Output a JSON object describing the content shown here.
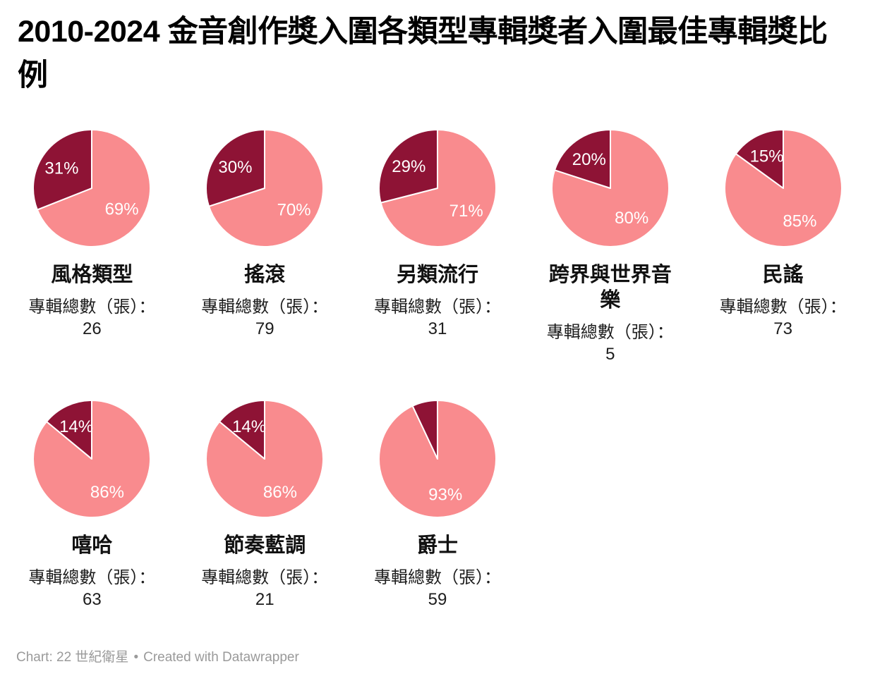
{
  "title": {
    "line1": "2010-2024 金音創作獎入圍各類型專輯獎者入圍最佳專輯獎比",
    "line2": "例"
  },
  "album_total_label": "專輯總數（張）：",
  "colors": {
    "nominated_dark": "#8e1335",
    "other_pink": "#f98b8e",
    "slice_label": "#ffffff",
    "background": "#ffffff",
    "footer_text": "#9a9a9a"
  },
  "footer": {
    "credit": "Chart: 22 世紀衛星",
    "separator": "•",
    "created_with": "Created with Datawrapper"
  },
  "chart_data": [
    {
      "type": "pie",
      "category": "風格類型",
      "album_total": "26",
      "slices": [
        {
          "pct": 69,
          "color_key": "other_pink",
          "label": "69%"
        },
        {
          "pct": 31,
          "color_key": "nominated_dark",
          "label": "31%"
        }
      ]
    },
    {
      "type": "pie",
      "category": "搖滾",
      "album_total": "79",
      "slices": [
        {
          "pct": 70,
          "color_key": "other_pink",
          "label": "70%"
        },
        {
          "pct": 30,
          "color_key": "nominated_dark",
          "label": "30%"
        }
      ]
    },
    {
      "type": "pie",
      "category": "另類流行",
      "album_total": "31",
      "slices": [
        {
          "pct": 71,
          "color_key": "other_pink",
          "label": "71%"
        },
        {
          "pct": 29,
          "color_key": "nominated_dark",
          "label": "29%"
        }
      ]
    },
    {
      "type": "pie",
      "category": "跨界與世界音樂",
      "album_total": "5",
      "slices": [
        {
          "pct": 80,
          "color_key": "other_pink",
          "label": "80%"
        },
        {
          "pct": 20,
          "color_key": "nominated_dark",
          "label": "20%"
        }
      ]
    },
    {
      "type": "pie",
      "category": "民謠",
      "album_total": "73",
      "slices": [
        {
          "pct": 85,
          "color_key": "other_pink",
          "label": "85%"
        },
        {
          "pct": 15,
          "color_key": "nominated_dark",
          "label": "15%"
        }
      ]
    },
    {
      "type": "pie",
      "category": "嘻哈",
      "album_total": "63",
      "slices": [
        {
          "pct": 86,
          "color_key": "other_pink",
          "label": "86%"
        },
        {
          "pct": 14,
          "color_key": "nominated_dark",
          "label": "14%"
        }
      ]
    },
    {
      "type": "pie",
      "category": "節奏藍調",
      "album_total": "21",
      "slices": [
        {
          "pct": 86,
          "color_key": "other_pink",
          "label": "86%"
        },
        {
          "pct": 14,
          "color_key": "nominated_dark",
          "label": "14%"
        }
      ]
    },
    {
      "type": "pie",
      "category": "爵士",
      "album_total": "59",
      "slices": [
        {
          "pct": 93,
          "color_key": "other_pink",
          "label": "93%"
        },
        {
          "pct": 7,
          "color_key": "nominated_dark",
          "label": ""
        }
      ]
    }
  ]
}
